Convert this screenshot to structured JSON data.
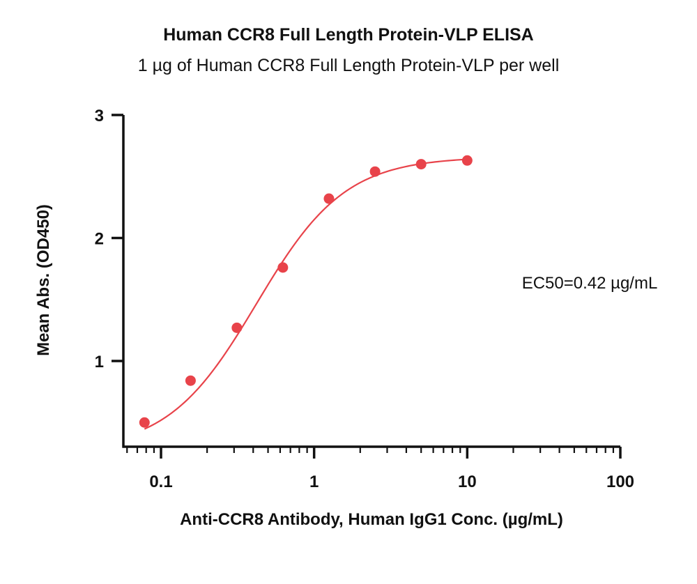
{
  "chart_data": {
    "type": "scatter",
    "title": "Human CCR8 Full Length Protein-VLP ELISA",
    "subtitle": "1 µg of Human CCR8 Full Length Protein-VLP per well",
    "xlabel": "Anti-CCR8 Antibody, Human IgG1 Conc. (µg/mL)",
    "ylabel": "Mean Abs. (OD450)",
    "x_scale": "log",
    "xlim": [
      0.05,
      100
    ],
    "ylim": [
      0.4,
      3
    ],
    "x_ticks": [
      {
        "value": 0.1,
        "label": "0.1"
      },
      {
        "value": 1,
        "label": "1"
      },
      {
        "value": 10,
        "label": "10"
      },
      {
        "value": 100,
        "label": "100"
      }
    ],
    "y_ticks": [
      {
        "value": 1,
        "label": "1"
      },
      {
        "value": 2,
        "label": "2"
      },
      {
        "value": 3,
        "label": "3"
      }
    ],
    "grid": false,
    "series": [
      {
        "color": "#e8434a",
        "points": [
          {
            "x": 0.078,
            "y": 0.5
          },
          {
            "x": 0.156,
            "y": 0.84
          },
          {
            "x": 0.313,
            "y": 1.27
          },
          {
            "x": 0.625,
            "y": 1.76
          },
          {
            "x": 1.25,
            "y": 2.32
          },
          {
            "x": 2.5,
            "y": 2.54
          },
          {
            "x": 5,
            "y": 2.6
          },
          {
            "x": 10,
            "y": 2.63
          }
        ],
        "fit": {
          "model": "4PL",
          "bottom": 0.27,
          "top": 2.66,
          "ec50": 0.42,
          "hill": 1.5,
          "x_range": [
            0.078,
            10
          ]
        }
      }
    ],
    "annotations": [
      {
        "text": "EC50=0.42 µg/mL"
      }
    ]
  }
}
